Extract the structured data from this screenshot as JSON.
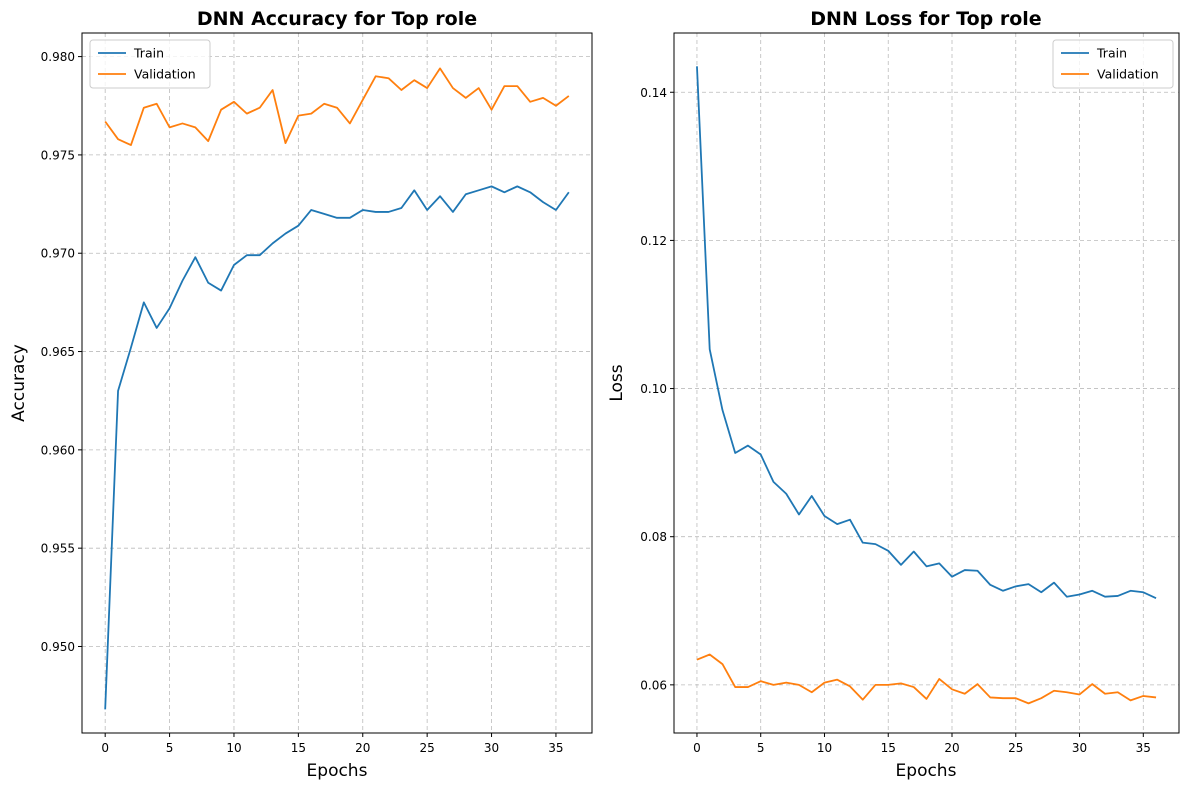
{
  "chart_data": [
    {
      "type": "line",
      "title": "DNN Accuracy for Top role",
      "xlabel": "Epochs",
      "ylabel": "Accuracy",
      "xlim": [
        -1.8,
        37.8
      ],
      "ylim": [
        0.9456,
        0.9812
      ],
      "xticks": [
        0,
        5,
        10,
        15,
        20,
        25,
        30,
        35
      ],
      "xtick_labels": [
        "0",
        "5",
        "10",
        "15",
        "20",
        "25",
        "30",
        "35"
      ],
      "yticks": [
        0.95,
        0.955,
        0.96,
        0.965,
        0.97,
        0.975,
        0.98
      ],
      "ytick_labels": [
        "0.950",
        "0.955",
        "0.960",
        "0.965",
        "0.970",
        "0.975",
        "0.980"
      ],
      "grid": true,
      "legend_position": "top-left",
      "x": [
        0,
        1,
        2,
        3,
        4,
        5,
        6,
        7,
        8,
        9,
        10,
        11,
        12,
        13,
        14,
        15,
        16,
        17,
        18,
        19,
        20,
        21,
        22,
        23,
        24,
        25,
        26,
        27,
        28,
        29,
        30,
        31,
        32,
        33,
        34,
        35,
        36
      ],
      "series": [
        {
          "name": "Train",
          "color": "#1f77b4",
          "values": [
            0.9468,
            0.963,
            0.9652,
            0.9675,
            0.9662,
            0.9672,
            0.9686,
            0.9698,
            0.9685,
            0.9681,
            0.9694,
            0.9699,
            0.9699,
            0.9705,
            0.971,
            0.9714,
            0.9722,
            0.972,
            0.9718,
            0.9718,
            0.9722,
            0.9721,
            0.9721,
            0.9723,
            0.9732,
            0.9722,
            0.9729,
            0.9721,
            0.973,
            0.9732,
            0.9734,
            0.9731,
            0.9734,
            0.9731,
            0.9726,
            0.9722,
            0.9731
          ]
        },
        {
          "name": "Validation",
          "color": "#ff7f0e",
          "values": [
            0.9767,
            0.9758,
            0.9755,
            0.9774,
            0.9776,
            0.9764,
            0.9766,
            0.9764,
            0.9757,
            0.9773,
            0.9777,
            0.9771,
            0.9774,
            0.9783,
            0.9756,
            0.977,
            0.9771,
            0.9776,
            0.9774,
            0.9766,
            0.9778,
            0.979,
            0.9789,
            0.9783,
            0.9788,
            0.9784,
            0.9794,
            0.9784,
            0.9779,
            0.9784,
            0.9773,
            0.9785,
            0.9785,
            0.9777,
            0.9779,
            0.9775,
            0.978
          ]
        }
      ]
    },
    {
      "type": "line",
      "title": "DNN Loss for Top role",
      "xlabel": "Epochs",
      "ylabel": "Loss",
      "xlim": [
        -1.8,
        37.8
      ],
      "ylim": [
        0.0535,
        0.148
      ],
      "xticks": [
        0,
        5,
        10,
        15,
        20,
        25,
        30,
        35
      ],
      "xtick_labels": [
        "0",
        "5",
        "10",
        "15",
        "20",
        "25",
        "30",
        "35"
      ],
      "yticks": [
        0.06,
        0.08,
        0.1,
        0.12,
        0.14
      ],
      "ytick_labels": [
        "0.06",
        "0.08",
        "0.10",
        "0.12",
        "0.14"
      ],
      "grid": true,
      "legend_position": "top-right",
      "x": [
        0,
        1,
        2,
        3,
        4,
        5,
        6,
        7,
        8,
        9,
        10,
        11,
        12,
        13,
        14,
        15,
        16,
        17,
        18,
        19,
        20,
        21,
        22,
        23,
        24,
        25,
        26,
        27,
        28,
        29,
        30,
        31,
        32,
        33,
        34,
        35,
        36
      ],
      "series": [
        {
          "name": "Train",
          "color": "#1f77b4",
          "values": [
            0.1435,
            0.1053,
            0.0971,
            0.0913,
            0.0923,
            0.0911,
            0.0874,
            0.0858,
            0.083,
            0.0855,
            0.0828,
            0.0817,
            0.0823,
            0.0792,
            0.079,
            0.0781,
            0.0762,
            0.078,
            0.076,
            0.0764,
            0.0746,
            0.0755,
            0.0754,
            0.0735,
            0.0727,
            0.0733,
            0.0736,
            0.0725,
            0.0738,
            0.0719,
            0.0722,
            0.0727,
            0.0719,
            0.072,
            0.0727,
            0.0725,
            0.0717
          ]
        },
        {
          "name": "Validation",
          "color": "#ff7f0e",
          "values": [
            0.0634,
            0.0641,
            0.0628,
            0.0597,
            0.0597,
            0.0605,
            0.06,
            0.0603,
            0.06,
            0.059,
            0.0603,
            0.0607,
            0.0598,
            0.058,
            0.06,
            0.06,
            0.0602,
            0.0597,
            0.0581,
            0.0608,
            0.0594,
            0.0588,
            0.0601,
            0.0583,
            0.0582,
            0.0582,
            0.0575,
            0.0582,
            0.0592,
            0.059,
            0.0587,
            0.0601,
            0.0588,
            0.059,
            0.0579,
            0.0585,
            0.0583
          ]
        }
      ]
    }
  ]
}
